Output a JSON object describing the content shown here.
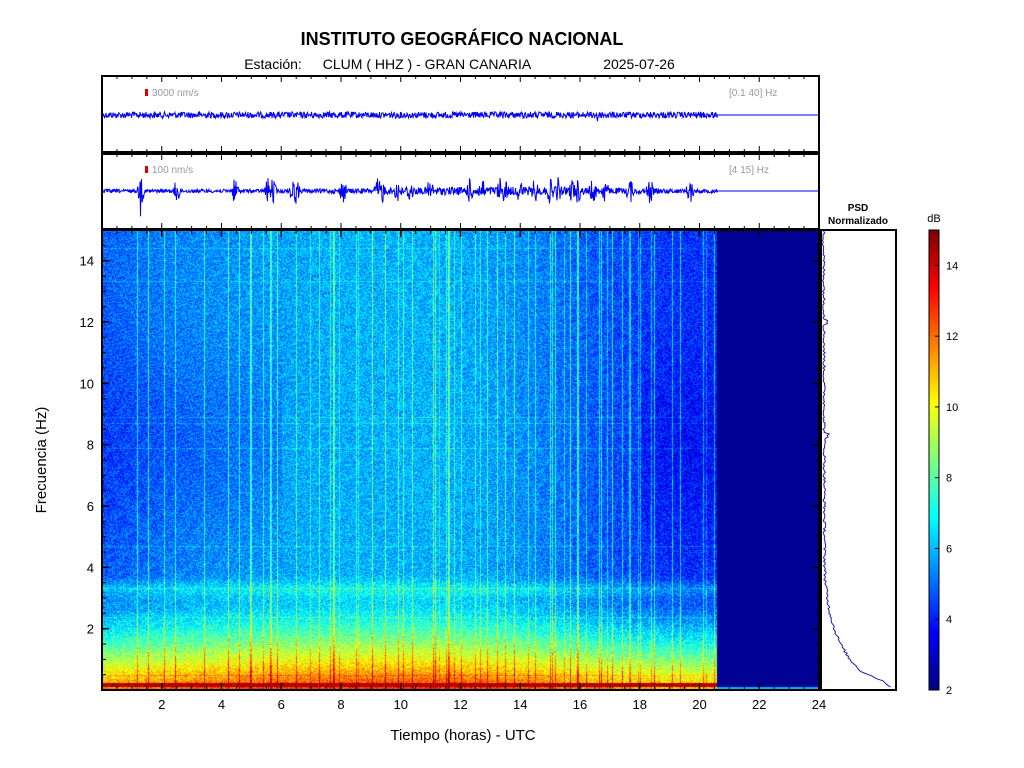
{
  "header": {
    "title": "INSTITUTO GEOGRÁFICO NACIONAL",
    "station_prefix": "Estación:",
    "station": "CLUM ( HHZ ) - GRAN CANARIA",
    "date": "2025-07-26"
  },
  "trace1": {
    "scale_label": "3000 nm/s",
    "band_label": "[0.1 40] Hz",
    "color": "#0000ff"
  },
  "trace2": {
    "scale_label": "100 nm/s",
    "band_label": "[4 15] Hz",
    "color": "#0000ff"
  },
  "psd": {
    "title_line1": "PSD",
    "title_line2": "Normalizado"
  },
  "colorbar": {
    "unit": "dB",
    "ticks": [
      2,
      4,
      6,
      8,
      10,
      12,
      14
    ],
    "range": [
      2,
      15
    ],
    "colormap": "jet"
  },
  "axes": {
    "xlabel": "Tiempo (horas) - UTC",
    "ylabel": "Frecuencia  (Hz)"
  },
  "chart_data": {
    "type": "heatmap",
    "title": "INSTITUTO GEOGRÁFICO NACIONAL",
    "x_range": [
      0,
      24
    ],
    "x_ticks": [
      2,
      4,
      6,
      8,
      10,
      12,
      14,
      16,
      18,
      20,
      22,
      24
    ],
    "y_range": [
      0,
      15
    ],
    "y_ticks": [
      2,
      4,
      6,
      8,
      10,
      12,
      14
    ],
    "data_end_hour": 20.6,
    "xlabel": "Tiempo (horas) - UTC",
    "ylabel": "Frecuencia  (Hz)",
    "colorbar_label": "dB",
    "colorbar_range": [
      2,
      15
    ],
    "psd_profile": {
      "freq_hz": [
        0.1,
        0.3,
        0.6,
        1.0,
        1.5,
        2.0,
        2.5,
        3.0,
        3.3,
        3.6,
        4.0,
        6.0,
        8.0,
        10.0,
        12.0,
        14.0,
        15.0
      ],
      "normalized": [
        0.97,
        0.85,
        0.55,
        0.38,
        0.25,
        0.16,
        0.1,
        0.06,
        0.05,
        0.03,
        0.025,
        0.02,
        0.02,
        0.015,
        0.015,
        0.01,
        0.01
      ]
    }
  }
}
